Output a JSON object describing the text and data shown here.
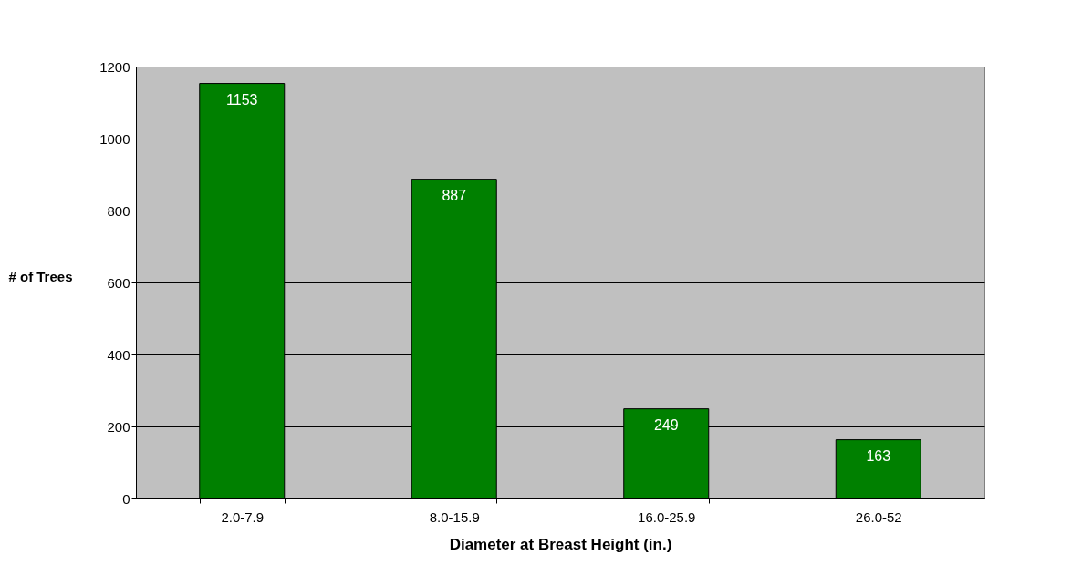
{
  "chart_data": {
    "type": "bar",
    "xlabel": "Diameter at Breast Height (in.)",
    "ylabel": "# of Trees",
    "categories": [
      "2.0-7.9",
      "8.0-15.9",
      "16.0-25.9",
      "26.0-52"
    ],
    "values": [
      1153,
      887,
      249,
      163
    ],
    "color": "#008000",
    "ylim": [
      0,
      1200
    ],
    "yticks": [
      0,
      200,
      400,
      600,
      800,
      1000,
      1200
    ],
    "grid": "y",
    "data_labels": true
  }
}
